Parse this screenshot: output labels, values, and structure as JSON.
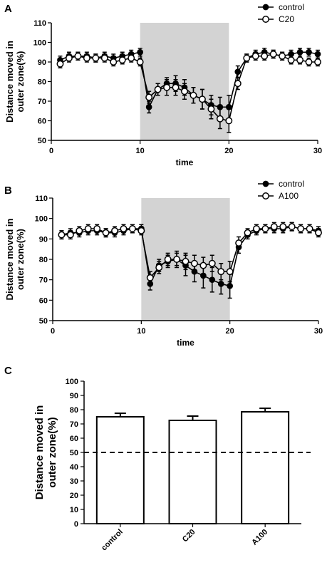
{
  "chart_data": [
    {
      "panel": "A",
      "type": "line",
      "xlabel": "time",
      "ylabel": [
        "Distance moved in",
        "outer zone(%)"
      ],
      "xlim": [
        0,
        30
      ],
      "ylim": [
        50,
        110
      ],
      "xticks": [
        0,
        10,
        20,
        30
      ],
      "yticks": [
        50,
        60,
        70,
        80,
        90,
        100,
        110
      ],
      "shaded_x": [
        10,
        20
      ],
      "legend_position": "top-right",
      "x": [
        1,
        2,
        3,
        4,
        5,
        6,
        7,
        8,
        9,
        10,
        11,
        12,
        13,
        14,
        15,
        16,
        17,
        18,
        19,
        20,
        21,
        22,
        23,
        24,
        25,
        26,
        27,
        28,
        29,
        30
      ],
      "series": [
        {
          "name": "control",
          "marker": "filled",
          "values": [
            91,
            93,
            93,
            93,
            92,
            93,
            92,
            93,
            94,
            95,
            67,
            76,
            79,
            79,
            77,
            73,
            71,
            68,
            67,
            67,
            85,
            92,
            94,
            95,
            94,
            93,
            94,
            95,
            95,
            94
          ],
          "errors": [
            2,
            2,
            2,
            2,
            2,
            2,
            2,
            2,
            2,
            2,
            3,
            3,
            3,
            4,
            4,
            4,
            5,
            5,
            5,
            6,
            3,
            2,
            2,
            2,
            2,
            2,
            2,
            2,
            2,
            2
          ]
        },
        {
          "name": "C20",
          "marker": "open",
          "values": [
            89,
            92,
            93,
            92,
            92,
            92,
            90,
            91,
            92,
            90,
            72,
            76,
            77,
            77,
            75,
            73,
            71,
            66,
            61,
            60,
            79,
            92,
            93,
            93,
            94,
            93,
            91,
            91,
            90,
            90
          ],
          "errors": [
            2,
            2,
            2,
            2,
            2,
            2,
            2,
            2,
            2,
            2,
            3,
            3,
            4,
            4,
            4,
            4,
            5,
            5,
            5,
            6,
            3,
            2,
            2,
            2,
            2,
            2,
            2,
            2,
            2,
            2
          ]
        }
      ]
    },
    {
      "panel": "B",
      "type": "line",
      "xlabel": "time",
      "ylabel": [
        "Distance moved in",
        "outer zone(%)"
      ],
      "xlim": [
        0,
        30
      ],
      "ylim": [
        50,
        110
      ],
      "xticks": [
        0,
        10,
        20,
        30
      ],
      "yticks": [
        50,
        60,
        70,
        80,
        90,
        100,
        110
      ],
      "shaded_x": [
        10,
        20
      ],
      "legend_position": "top-right",
      "x": [
        1,
        2,
        3,
        4,
        5,
        6,
        7,
        8,
        9,
        10,
        11,
        12,
        13,
        14,
        15,
        16,
        17,
        18,
        19,
        20,
        21,
        22,
        23,
        24,
        25,
        26,
        27,
        28,
        29,
        30
      ],
      "series": [
        {
          "name": "control",
          "marker": "filled",
          "values": [
            92,
            93,
            93,
            94,
            94,
            93,
            93,
            94,
            95,
            95,
            68,
            77,
            79,
            80,
            77,
            74,
            72,
            70,
            68,
            67,
            86,
            92,
            94,
            95,
            95,
            95,
            96,
            95,
            95,
            94
          ],
          "errors": [
            2,
            2,
            2,
            2,
            2,
            2,
            2,
            2,
            2,
            2,
            3,
            3,
            3,
            4,
            5,
            5,
            6,
            6,
            5,
            6,
            3,
            2,
            2,
            2,
            2,
            2,
            2,
            2,
            2,
            2
          ]
        },
        {
          "name": "A100",
          "marker": "open",
          "values": [
            92,
            92,
            94,
            95,
            95,
            93,
            94,
            95,
            95,
            94,
            71,
            76,
            80,
            80,
            79,
            78,
            77,
            78,
            74,
            74,
            88,
            93,
            95,
            95,
            96,
            96,
            96,
            95,
            95,
            93
          ],
          "errors": [
            2,
            2,
            2,
            2,
            2,
            2,
            2,
            2,
            2,
            2,
            3,
            3,
            3,
            3,
            4,
            4,
            4,
            4,
            4,
            5,
            3,
            2,
            2,
            2,
            2,
            2,
            2,
            2,
            2,
            2
          ]
        }
      ]
    },
    {
      "panel": "C",
      "type": "bar",
      "categories": [
        "control",
        "C20",
        "A100"
      ],
      "values": [
        75,
        72.5,
        78.5
      ],
      "errors": [
        2.5,
        3,
        2.5
      ],
      "ylabel": [
        "Distance moved in",
        "outer zone(%)"
      ],
      "ylim": [
        0,
        100
      ],
      "yticks": [
        0,
        10,
        20,
        30,
        40,
        50,
        60,
        70,
        80,
        90,
        100
      ],
      "reference_line": 50,
      "bar_fill": "#ffffff"
    }
  ]
}
